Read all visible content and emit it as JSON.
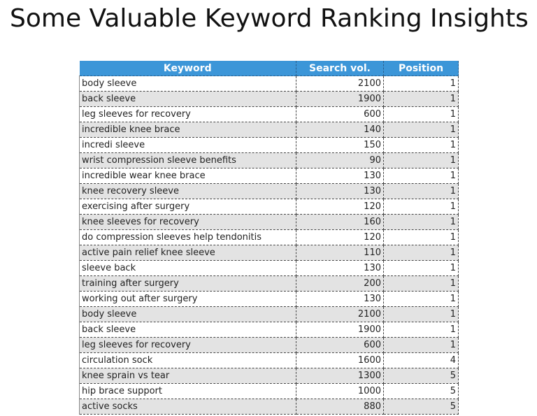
{
  "title": "Some Valuable Keyword Ranking Insights",
  "table": {
    "headers": [
      "Keyword",
      "Search vol.",
      "Position"
    ],
    "header_color": "#3c96d8",
    "rows": [
      {
        "keyword": "body sleeve",
        "volume": "2100",
        "position": "1"
      },
      {
        "keyword": "back sleeve",
        "volume": "1900",
        "position": "1"
      },
      {
        "keyword": "leg sleeves for recovery",
        "volume": "600",
        "position": "1"
      },
      {
        "keyword": "incredible knee brace",
        "volume": "140",
        "position": "1"
      },
      {
        "keyword": "incredi sleeve",
        "volume": "150",
        "position": "1"
      },
      {
        "keyword": "wrist compression sleeve benefits",
        "volume": "90",
        "position": "1"
      },
      {
        "keyword": "incredible wear knee brace",
        "volume": "130",
        "position": "1"
      },
      {
        "keyword": "knee recovery sleeve",
        "volume": "130",
        "position": "1"
      },
      {
        "keyword": "exercising after surgery",
        "volume": "120",
        "position": "1"
      },
      {
        "keyword": "knee sleeves for recovery",
        "volume": "160",
        "position": "1"
      },
      {
        "keyword": "do compression sleeves help tendonitis",
        "volume": "120",
        "position": "1"
      },
      {
        "keyword": "active pain relief knee sleeve",
        "volume": "110",
        "position": "1"
      },
      {
        "keyword": "sleeve back",
        "volume": "130",
        "position": "1"
      },
      {
        "keyword": "training after surgery",
        "volume": "200",
        "position": "1"
      },
      {
        "keyword": "working out after surgery",
        "volume": "130",
        "position": "1"
      },
      {
        "keyword": "body sleeve",
        "volume": "2100",
        "position": "1"
      },
      {
        "keyword": "back sleeve",
        "volume": "1900",
        "position": "1"
      },
      {
        "keyword": "leg sleeves for recovery",
        "volume": "600",
        "position": "1"
      },
      {
        "keyword": "circulation sock",
        "volume": "1600",
        "position": "4"
      },
      {
        "keyword": "knee sprain vs tear",
        "volume": "1300",
        "position": "5"
      },
      {
        "keyword": "hip brace support",
        "volume": "1000",
        "position": "5"
      },
      {
        "keyword": "active socks",
        "volume": "880",
        "position": "5"
      }
    ]
  }
}
